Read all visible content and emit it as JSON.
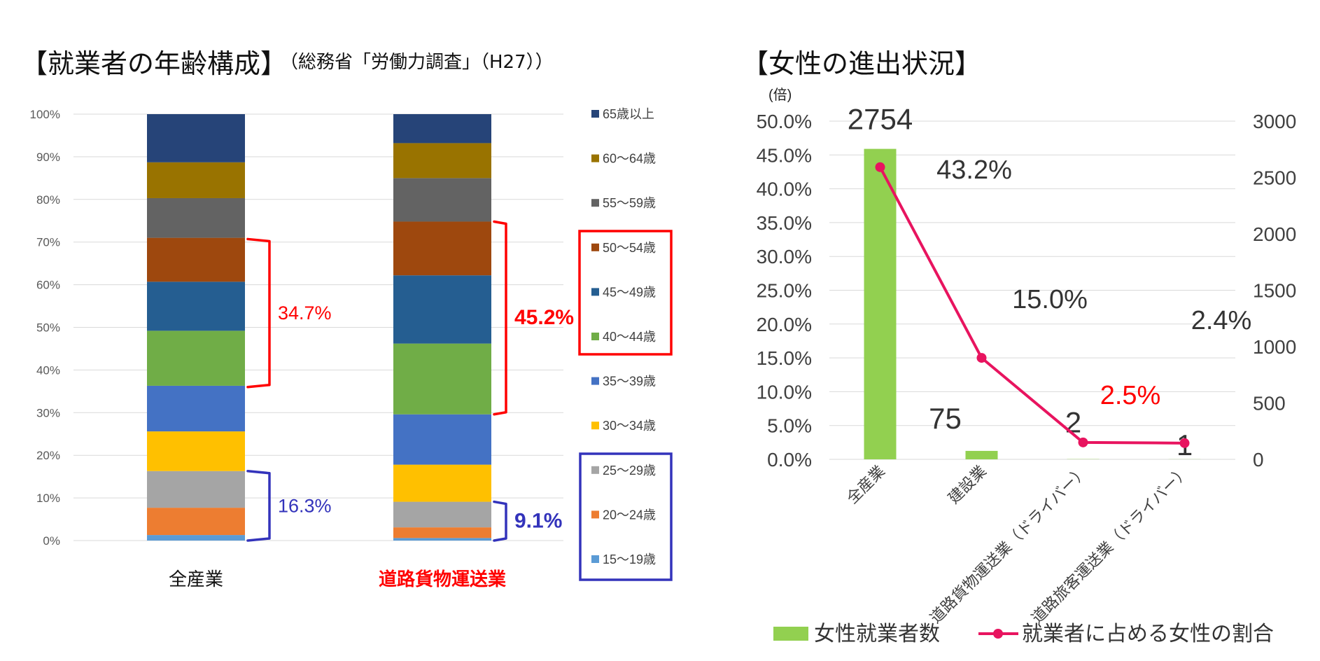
{
  "left_title": "【就業者の年齢構成】",
  "left_source": "（総務省「労働力調査」（H27））",
  "right_title": "【女性の進出状況】",
  "chart_data": [
    {
      "type": "bar",
      "stacked": true,
      "categories": [
        "全産業",
        "道路貨物運送業"
      ],
      "ylim": [
        0,
        100
      ],
      "yticks": [
        "0%",
        "10%",
        "20%",
        "30%",
        "40%",
        "50%",
        "60%",
        "70%",
        "80%",
        "90%",
        "100%"
      ],
      "grid": true,
      "legend_position": "right",
      "series": [
        {
          "name": "15〜19歳",
          "color": "#5B9BD5",
          "values": [
            1.3,
            0.6
          ]
        },
        {
          "name": "20〜24歳",
          "color": "#ED7D31",
          "values": [
            6.4,
            2.5
          ]
        },
        {
          "name": "25〜29歳",
          "color": "#A5A5A5",
          "values": [
            8.6,
            6.0
          ]
        },
        {
          "name": "30〜34歳",
          "color": "#FFC000",
          "values": [
            9.3,
            8.7
          ]
        },
        {
          "name": "35〜39歳",
          "color": "#4472C4",
          "values": [
            10.7,
            11.8
          ]
        },
        {
          "name": "40〜44歳",
          "color": "#70AD47",
          "values": [
            12.9,
            16.6
          ]
        },
        {
          "name": "45〜49歳",
          "color": "#255E91",
          "values": [
            11.5,
            16.0
          ]
        },
        {
          "name": "50〜54歳",
          "color": "#9E480E",
          "values": [
            10.3,
            12.6
          ]
        },
        {
          "name": "55〜59歳",
          "color": "#636363",
          "values": [
            9.3,
            10.2
          ]
        },
        {
          "name": "60〜64歳",
          "color": "#997300",
          "values": [
            8.4,
            8.2
          ]
        },
        {
          "name": "65歳以上",
          "color": "#264478",
          "values": [
            11.3,
            6.8
          ]
        }
      ],
      "annotations": [
        {
          "text": "34.7%",
          "category": "全産業",
          "from": 36.0,
          "to": 70.7,
          "color": "#FF0000",
          "bold": false
        },
        {
          "text": "16.3%",
          "category": "全産業",
          "from": 0,
          "to": 16.3,
          "color": "#3333BB",
          "bold": false
        },
        {
          "text": "45.2%",
          "category": "道路貨物運送業",
          "from": 29.6,
          "to": 74.8,
          "color": "#FF0000",
          "bold": true
        },
        {
          "text": "9.1%",
          "category": "道路貨物運送業",
          "from": 0,
          "to": 9.1,
          "color": "#3333BB",
          "bold": true
        }
      ],
      "category_label_colors": [
        "#111111",
        "#FF0000"
      ]
    },
    {
      "type": "bar+line",
      "categories": [
        "全産業",
        "建設業",
        "道路貨物運送業（ドライバー）",
        "道路旅客運送業（ドライバー）"
      ],
      "y_left_unit": "(倍)",
      "y_left": {
        "min": 0,
        "max": 50,
        "ticks": [
          "0.0%",
          "5.0%",
          "10.0%",
          "15.0%",
          "20.0%",
          "25.0%",
          "30.0%",
          "35.0%",
          "40.0%",
          "45.0%",
          "50.0%"
        ]
      },
      "y_right": {
        "min": 0,
        "max": 3000,
        "ticks": [
          "0",
          "500",
          "1000",
          "1500",
          "2000",
          "2500",
          "3000"
        ]
      },
      "grid": true,
      "legend_position": "bottom",
      "series": [
        {
          "name": "女性就業者数",
          "type": "bar",
          "axis": "right",
          "color": "#92D050",
          "values": [
            2754,
            75,
            2,
            1
          ],
          "labels": [
            "2754",
            "75",
            "2",
            "1"
          ]
        },
        {
          "name": "就業者に占める女性の割合",
          "type": "line",
          "axis": "left",
          "color": "#E8145F",
          "values": [
            43.2,
            15.0,
            2.5,
            2.4
          ],
          "labels": [
            "43.2%",
            "15.0%",
            "2.5%",
            "2.4%"
          ],
          "label_colors": [
            "#333333",
            "#333333",
            "#FF0000",
            "#333333"
          ]
        }
      ]
    }
  ]
}
